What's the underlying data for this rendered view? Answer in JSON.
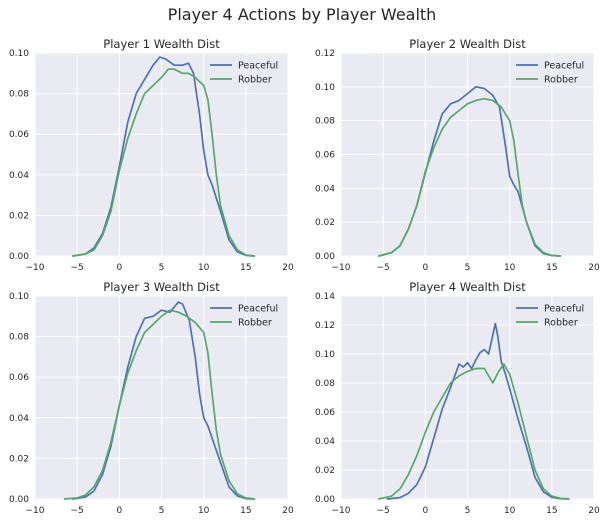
{
  "figure": {
    "title": "Player 4 Actions by Player Wealth",
    "colors": {
      "background": "#eaeaf2",
      "grid": "#ffffff",
      "peaceful": "#4c72b0",
      "robber": "#55a868"
    }
  },
  "chart_data": [
    {
      "type": "line",
      "title": "Player 1 Wealth Dist",
      "xlim": [
        -10,
        20
      ],
      "ylim": [
        0,
        0.1
      ],
      "xticks": [
        "−10",
        "−5",
        "0",
        "5",
        "10",
        "15",
        "20"
      ],
      "yticks": [
        "0.00",
        "0.02",
        "0.04",
        "0.06",
        "0.08",
        "0.10"
      ],
      "legend": "top-right",
      "series": [
        {
          "name": "Peaceful",
          "points": [
            [
              -5.5,
              0
            ],
            [
              -4,
              0.001
            ],
            [
              -3,
              0.004
            ],
            [
              -2,
              0.011
            ],
            [
              -1,
              0.024
            ],
            [
              0,
              0.044
            ],
            [
              1,
              0.066
            ],
            [
              2,
              0.08
            ],
            [
              3,
              0.087
            ],
            [
              4,
              0.094
            ],
            [
              4.8,
              0.098
            ],
            [
              5.5,
              0.097
            ],
            [
              6.5,
              0.094
            ],
            [
              7.5,
              0.094
            ],
            [
              8.2,
              0.095
            ],
            [
              8.8,
              0.09
            ],
            [
              9.5,
              0.07
            ],
            [
              10,
              0.052
            ],
            [
              10.5,
              0.04
            ],
            [
              11,
              0.035
            ],
            [
              12,
              0.022
            ],
            [
              13,
              0.008
            ],
            [
              14,
              0.002
            ],
            [
              15,
              0.0003
            ],
            [
              16,
              0
            ]
          ]
        },
        {
          "name": "Robber",
          "points": [
            [
              -5.5,
              0
            ],
            [
              -4,
              0.001
            ],
            [
              -3,
              0.003
            ],
            [
              -2,
              0.01
            ],
            [
              -1,
              0.022
            ],
            [
              0,
              0.042
            ],
            [
              1,
              0.058
            ],
            [
              2,
              0.07
            ],
            [
              3,
              0.08
            ],
            [
              4,
              0.084
            ],
            [
              5,
              0.088
            ],
            [
              5.8,
              0.092
            ],
            [
              6.5,
              0.092
            ],
            [
              7.5,
              0.09
            ],
            [
              8.2,
              0.09
            ],
            [
              9,
              0.088
            ],
            [
              10,
              0.084
            ],
            [
              10.5,
              0.077
            ],
            [
              11,
              0.06
            ],
            [
              11.5,
              0.04
            ],
            [
              12,
              0.025
            ],
            [
              13,
              0.01
            ],
            [
              14,
              0.003
            ],
            [
              15,
              0.0005
            ],
            [
              16,
              0
            ]
          ]
        }
      ]
    },
    {
      "type": "line",
      "title": "Player 2 Wealth Dist",
      "xlim": [
        -10,
        20
      ],
      "ylim": [
        0,
        0.12
      ],
      "xticks": [
        "−10",
        "−5",
        "0",
        "5",
        "10",
        "15",
        "20"
      ],
      "yticks": [
        "0.00",
        "0.02",
        "0.04",
        "0.06",
        "0.08",
        "0.10",
        "0.12"
      ],
      "legend": "top-right",
      "series": [
        {
          "name": "Peaceful",
          "points": [
            [
              -5.5,
              0
            ],
            [
              -4,
              0.002
            ],
            [
              -3,
              0.006
            ],
            [
              -2,
              0.016
            ],
            [
              -1,
              0.03
            ],
            [
              0,
              0.049
            ],
            [
              1,
              0.068
            ],
            [
              2,
              0.084
            ],
            [
              3,
              0.09
            ],
            [
              4,
              0.092
            ],
            [
              5,
              0.096
            ],
            [
              6,
              0.1
            ],
            [
              7,
              0.099
            ],
            [
              8,
              0.095
            ],
            [
              8.8,
              0.088
            ],
            [
              9.5,
              0.065
            ],
            [
              10,
              0.047
            ],
            [
              10.5,
              0.042
            ],
            [
              11,
              0.038
            ],
            [
              12,
              0.02
            ],
            [
              13,
              0.006
            ],
            [
              14,
              0.0015
            ],
            [
              15,
              0.0003
            ],
            [
              16,
              0
            ]
          ]
        },
        {
          "name": "Robber",
          "points": [
            [
              -5.5,
              0
            ],
            [
              -4,
              0.002
            ],
            [
              -3,
              0.006
            ],
            [
              -2,
              0.016
            ],
            [
              -1,
              0.03
            ],
            [
              0,
              0.05
            ],
            [
              1,
              0.064
            ],
            [
              2,
              0.075
            ],
            [
              3,
              0.082
            ],
            [
              4,
              0.086
            ],
            [
              5,
              0.09
            ],
            [
              6,
              0.092
            ],
            [
              7,
              0.093
            ],
            [
              8,
              0.092
            ],
            [
              9,
              0.088
            ],
            [
              10,
              0.08
            ],
            [
              10.5,
              0.068
            ],
            [
              11,
              0.048
            ],
            [
              11.5,
              0.03
            ],
            [
              12,
              0.02
            ],
            [
              13,
              0.007
            ],
            [
              14,
              0.002
            ],
            [
              15,
              0.0003
            ],
            [
              16,
              0
            ]
          ]
        }
      ]
    },
    {
      "type": "line",
      "title": "Player 3 Wealth Dist",
      "xlim": [
        -10,
        20
      ],
      "ylim": [
        0,
        0.1
      ],
      "xticks": [
        "−10",
        "−5",
        "0",
        "5",
        "10",
        "15",
        "20"
      ],
      "yticks": [
        "0.00",
        "0.02",
        "0.04",
        "0.06",
        "0.08",
        "0.10"
      ],
      "legend": "top-right",
      "series": [
        {
          "name": "Peaceful",
          "points": [
            [
              -5.5,
              0
            ],
            [
              -4,
              0.001
            ],
            [
              -3,
              0.004
            ],
            [
              -2,
              0.012
            ],
            [
              -1,
              0.026
            ],
            [
              0,
              0.046
            ],
            [
              1,
              0.065
            ],
            [
              2,
              0.08
            ],
            [
              3,
              0.089
            ],
            [
              4,
              0.09
            ],
            [
              5,
              0.093
            ],
            [
              6,
              0.092
            ],
            [
              7,
              0.097
            ],
            [
              7.5,
              0.096
            ],
            [
              8.3,
              0.088
            ],
            [
              9,
              0.07
            ],
            [
              9.5,
              0.052
            ],
            [
              10,
              0.04
            ],
            [
              10.5,
              0.036
            ],
            [
              11,
              0.03
            ],
            [
              12,
              0.018
            ],
            [
              13,
              0.006
            ],
            [
              14,
              0.0015
            ],
            [
              15,
              0.0002
            ],
            [
              16,
              0
            ]
          ]
        },
        {
          "name": "Robber",
          "points": [
            [
              -6.5,
              0
            ],
            [
              -5,
              0.0005
            ],
            [
              -4,
              0.002
            ],
            [
              -3,
              0.006
            ],
            [
              -2,
              0.014
            ],
            [
              -1,
              0.028
            ],
            [
              0,
              0.046
            ],
            [
              1,
              0.062
            ],
            [
              2,
              0.073
            ],
            [
              3,
              0.082
            ],
            [
              4,
              0.086
            ],
            [
              5,
              0.09
            ],
            [
              6,
              0.093
            ],
            [
              7,
              0.092
            ],
            [
              8,
              0.09
            ],
            [
              9,
              0.087
            ],
            [
              10,
              0.082
            ],
            [
              10.5,
              0.072
            ],
            [
              11,
              0.052
            ],
            [
              11.5,
              0.034
            ],
            [
              12,
              0.022
            ],
            [
              13,
              0.009
            ],
            [
              14,
              0.0025
            ],
            [
              15,
              0.0005
            ],
            [
              16,
              0
            ]
          ]
        }
      ]
    },
    {
      "type": "line",
      "title": "Player 4 Wealth Dist",
      "xlim": [
        -10,
        20
      ],
      "ylim": [
        0,
        0.14
      ],
      "xticks": [
        "−10",
        "−5",
        "0",
        "5",
        "10",
        "15",
        "20"
      ],
      "yticks": [
        "0.00",
        "0.02",
        "0.04",
        "0.06",
        "0.08",
        "0.10",
        "0.12",
        "0.14"
      ],
      "legend": "top-right",
      "series": [
        {
          "name": "Peaceful",
          "points": [
            [
              -4.5,
              0
            ],
            [
              -3,
              0.001
            ],
            [
              -2,
              0.004
            ],
            [
              -1,
              0.01
            ],
            [
              0,
              0.022
            ],
            [
              1,
              0.042
            ],
            [
              2,
              0.062
            ],
            [
              3,
              0.077
            ],
            [
              4,
              0.093
            ],
            [
              4.5,
              0.091
            ],
            [
              5,
              0.094
            ],
            [
              5.5,
              0.09
            ],
            [
              6,
              0.096
            ],
            [
              6.5,
              0.101
            ],
            [
              7,
              0.103
            ],
            [
              7.5,
              0.1
            ],
            [
              8,
              0.113
            ],
            [
              8.3,
              0.121
            ],
            [
              8.6,
              0.112
            ],
            [
              9,
              0.095
            ],
            [
              9.5,
              0.086
            ],
            [
              10,
              0.076
            ],
            [
              11,
              0.055
            ],
            [
              12,
              0.036
            ],
            [
              13,
              0.015
            ],
            [
              14,
              0.005
            ],
            [
              15,
              0.0012
            ],
            [
              16,
              0.0002
            ],
            [
              17,
              0
            ]
          ]
        },
        {
          "name": "Robber",
          "points": [
            [
              -5.5,
              0
            ],
            [
              -4,
              0.002
            ],
            [
              -3,
              0.007
            ],
            [
              -2,
              0.017
            ],
            [
              -1,
              0.03
            ],
            [
              0,
              0.046
            ],
            [
              1,
              0.06
            ],
            [
              2,
              0.07
            ],
            [
              3,
              0.08
            ],
            [
              4,
              0.085
            ],
            [
              5,
              0.088
            ],
            [
              6,
              0.09
            ],
            [
              7,
              0.09
            ],
            [
              7.5,
              0.085
            ],
            [
              8,
              0.08
            ],
            [
              8.7,
              0.088
            ],
            [
              9.3,
              0.093
            ],
            [
              10,
              0.086
            ],
            [
              11,
              0.066
            ],
            [
              12,
              0.043
            ],
            [
              13,
              0.02
            ],
            [
              14,
              0.007
            ],
            [
              15,
              0.002
            ],
            [
              16,
              0.0005
            ],
            [
              17,
              0
            ]
          ]
        }
      ]
    }
  ]
}
